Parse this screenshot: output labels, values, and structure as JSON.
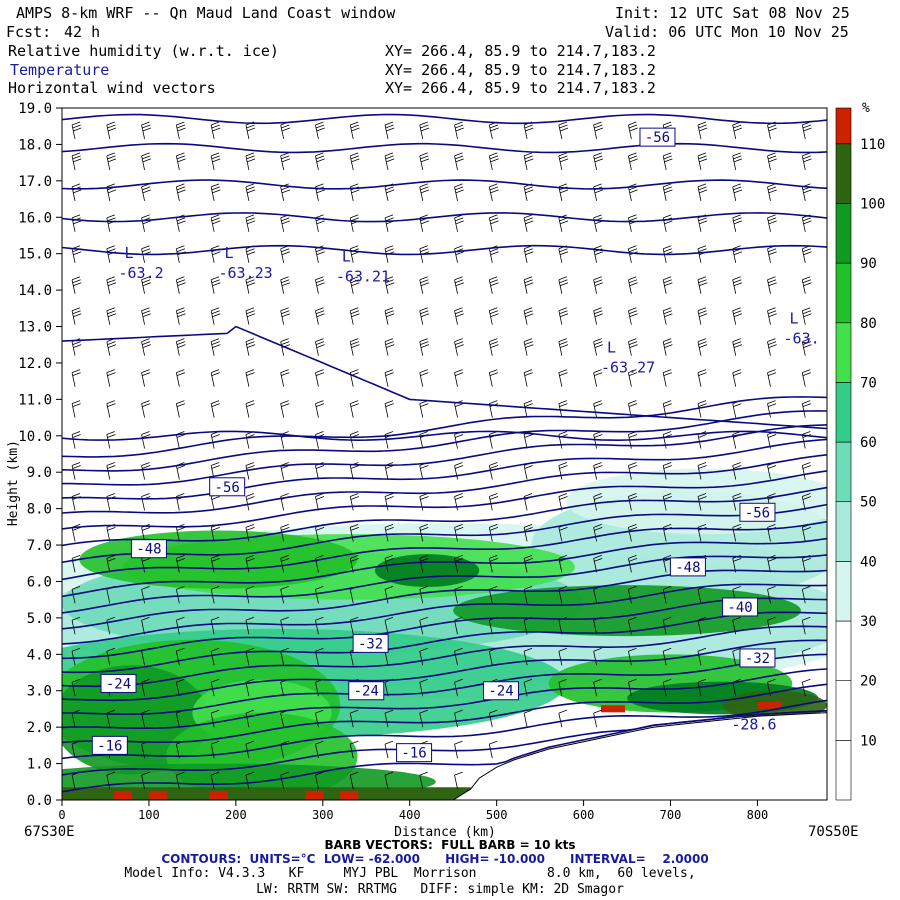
{
  "header": {
    "title": "AMPS 8-km WRF -- Qn Maud Land Coast window",
    "init": "Init: 12 UTC Sat 08 Nov 25",
    "fcst_label": "Fcst:",
    "fcst_value": "42 h",
    "valid": "Valid: 06 UTC Mon 10 Nov 25",
    "fields": [
      {
        "name": "Relative humidity (w.r.t. ice)",
        "xy": "XY= 266.4, 85.9 to 214.7,183.2"
      },
      {
        "name": "Temperature",
        "xy": "XY= 266.4, 85.9 to 214.7,183.2"
      },
      {
        "name": "Horizontal wind vectors",
        "xy": "XY= 266.4, 85.9 to 214.7,183.2"
      }
    ]
  },
  "chart_data": {
    "type": "heatmap",
    "ylabel": "Height (km)",
    "xlabel": "Distance (km)",
    "xlim": [
      0,
      880
    ],
    "ylim": [
      0,
      19
    ],
    "x_ticks": [
      0,
      100,
      200,
      300,
      400,
      500,
      600,
      700,
      800
    ],
    "y_ticks": [
      "0.0",
      "1.0",
      "2.0",
      "3.0",
      "4.0",
      "5.0",
      "6.0",
      "7.0",
      "8.0",
      "9.0",
      "10.0",
      "11.0",
      "12.0",
      "13.0",
      "14.0",
      "15.0",
      "16.0",
      "17.0",
      "18.0",
      "19.0"
    ],
    "left_endpoint": "67S30E",
    "right_endpoint": "70S50E",
    "colorbar": {
      "unit": "%",
      "labels": [
        "10",
        "20",
        "30",
        "40",
        "50",
        "60",
        "70",
        "80",
        "90",
        "100",
        "110"
      ],
      "colors": [
        "#ffffff",
        "#ffffff",
        "#ffffff",
        "#d6f5ee",
        "#a9eadb",
        "#6fdcb9",
        "#33cc88",
        "#44e04c",
        "#22c02a",
        "#119922",
        "#007a1e",
        "#2f6412",
        "#4a4a10",
        "#cc2200"
      ]
    },
    "terrain": [
      [
        0,
        0
      ],
      [
        100,
        0
      ],
      [
        200,
        0
      ],
      [
        300,
        0
      ],
      [
        400,
        0
      ],
      [
        450,
        0
      ],
      [
        470,
        0.3
      ],
      [
        480,
        0.6
      ],
      [
        500,
        0.9
      ],
      [
        520,
        1.1
      ],
      [
        560,
        1.4
      ],
      [
        600,
        1.6
      ],
      [
        640,
        1.8
      ],
      [
        680,
        2.0
      ],
      [
        720,
        2.1
      ],
      [
        760,
        2.2
      ],
      [
        800,
        2.3
      ],
      [
        880,
        2.4
      ]
    ],
    "isotherm_labels": [
      {
        "text": "-56",
        "x": 685,
        "y": 18.2
      },
      {
        "text": "-56",
        "x": 190,
        "y": 8.6
      },
      {
        "text": "-56",
        "x": 800,
        "y": 7.9
      },
      {
        "text": "-48",
        "x": 100,
        "y": 6.9
      },
      {
        "text": "-48",
        "x": 720,
        "y": 6.4
      },
      {
        "text": "-40",
        "x": 780,
        "y": 5.3
      },
      {
        "text": "-32",
        "x": 355,
        "y": 4.3
      },
      {
        "text": "-32",
        "x": 800,
        "y": 3.9
      },
      {
        "text": "-24",
        "x": 65,
        "y": 3.2
      },
      {
        "text": "-24",
        "x": 350,
        "y": 3.0
      },
      {
        "text": "-24",
        "x": 505,
        "y": 3.0
      },
      {
        "text": "-16",
        "x": 55,
        "y": 1.5
      },
      {
        "text": "-16",
        "x": 405,
        "y": 1.3
      }
    ],
    "lows": [
      {
        "value": "-63.2",
        "x": 65,
        "y": 14.5
      },
      {
        "value": "-63.23",
        "x": 180,
        "y": 14.5
      },
      {
        "value": "-63.21",
        "x": 315,
        "y": 14.4
      },
      {
        "value": "-63.27",
        "x": 620,
        "y": 11.9
      },
      {
        "value": "-63.",
        "x": 830,
        "y": 12.7
      },
      {
        "value": "-28.6",
        "x": 770,
        "y": 2.1
      }
    ],
    "low_marker": "L"
  },
  "footer": {
    "barb": "BARB VECTORS:  FULL BARB = 10 kts",
    "contours": "CONTOURS:  UNITS=°C  LOW= -62.000      HIGH= -10.000      INTERVAL=    2.0000",
    "model_info": "Model Info: V4.3.3   KF     MYJ PBL  Morrison         8.0 km,  60 levels,",
    "physics": "LW: RRTM SW: RRTMG   DIFF: simple KM: 2D Smagor"
  }
}
